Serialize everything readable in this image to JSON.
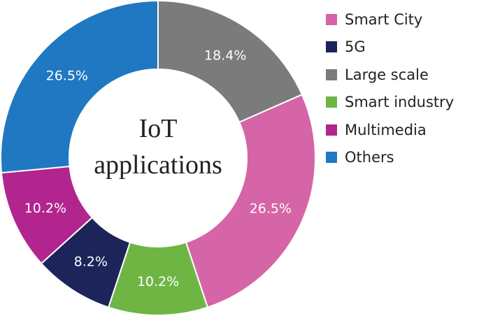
{
  "chart_data": {
    "type": "pie",
    "donut": true,
    "center_text": [
      "IoT",
      "applications"
    ],
    "legend_position": "right",
    "slices": [
      {
        "name": "Large scale",
        "value": 18.4,
        "label": "18.4%",
        "color": "#7b7b7b"
      },
      {
        "name": "Smart City",
        "value": 26.5,
        "label": "26.5%",
        "color": "#d565a6"
      },
      {
        "name": "Smart industry",
        "value": 10.2,
        "label": "10.2%",
        "color": "#6fb544"
      },
      {
        "name": "5G",
        "value": 8.2,
        "label": "8.2%",
        "color": "#1c2459"
      },
      {
        "name": "Multimedia",
        "value": 10.2,
        "label": "10.2%",
        "color": "#b2258f"
      },
      {
        "name": "Others",
        "value": 26.5,
        "label": "26.5%",
        "color": "#1f78c1"
      }
    ],
    "legend": [
      {
        "name": "Smart City",
        "color": "#d565a6"
      },
      {
        "name": "5G",
        "color": "#1c2459"
      },
      {
        "name": "Large scale",
        "color": "#7b7b7b"
      },
      {
        "name": "Smart industry",
        "color": "#6fb544"
      },
      {
        "name": "Multimedia",
        "color": "#b2258f"
      },
      {
        "name": "Others",
        "color": "#1f78c1"
      }
    ]
  }
}
